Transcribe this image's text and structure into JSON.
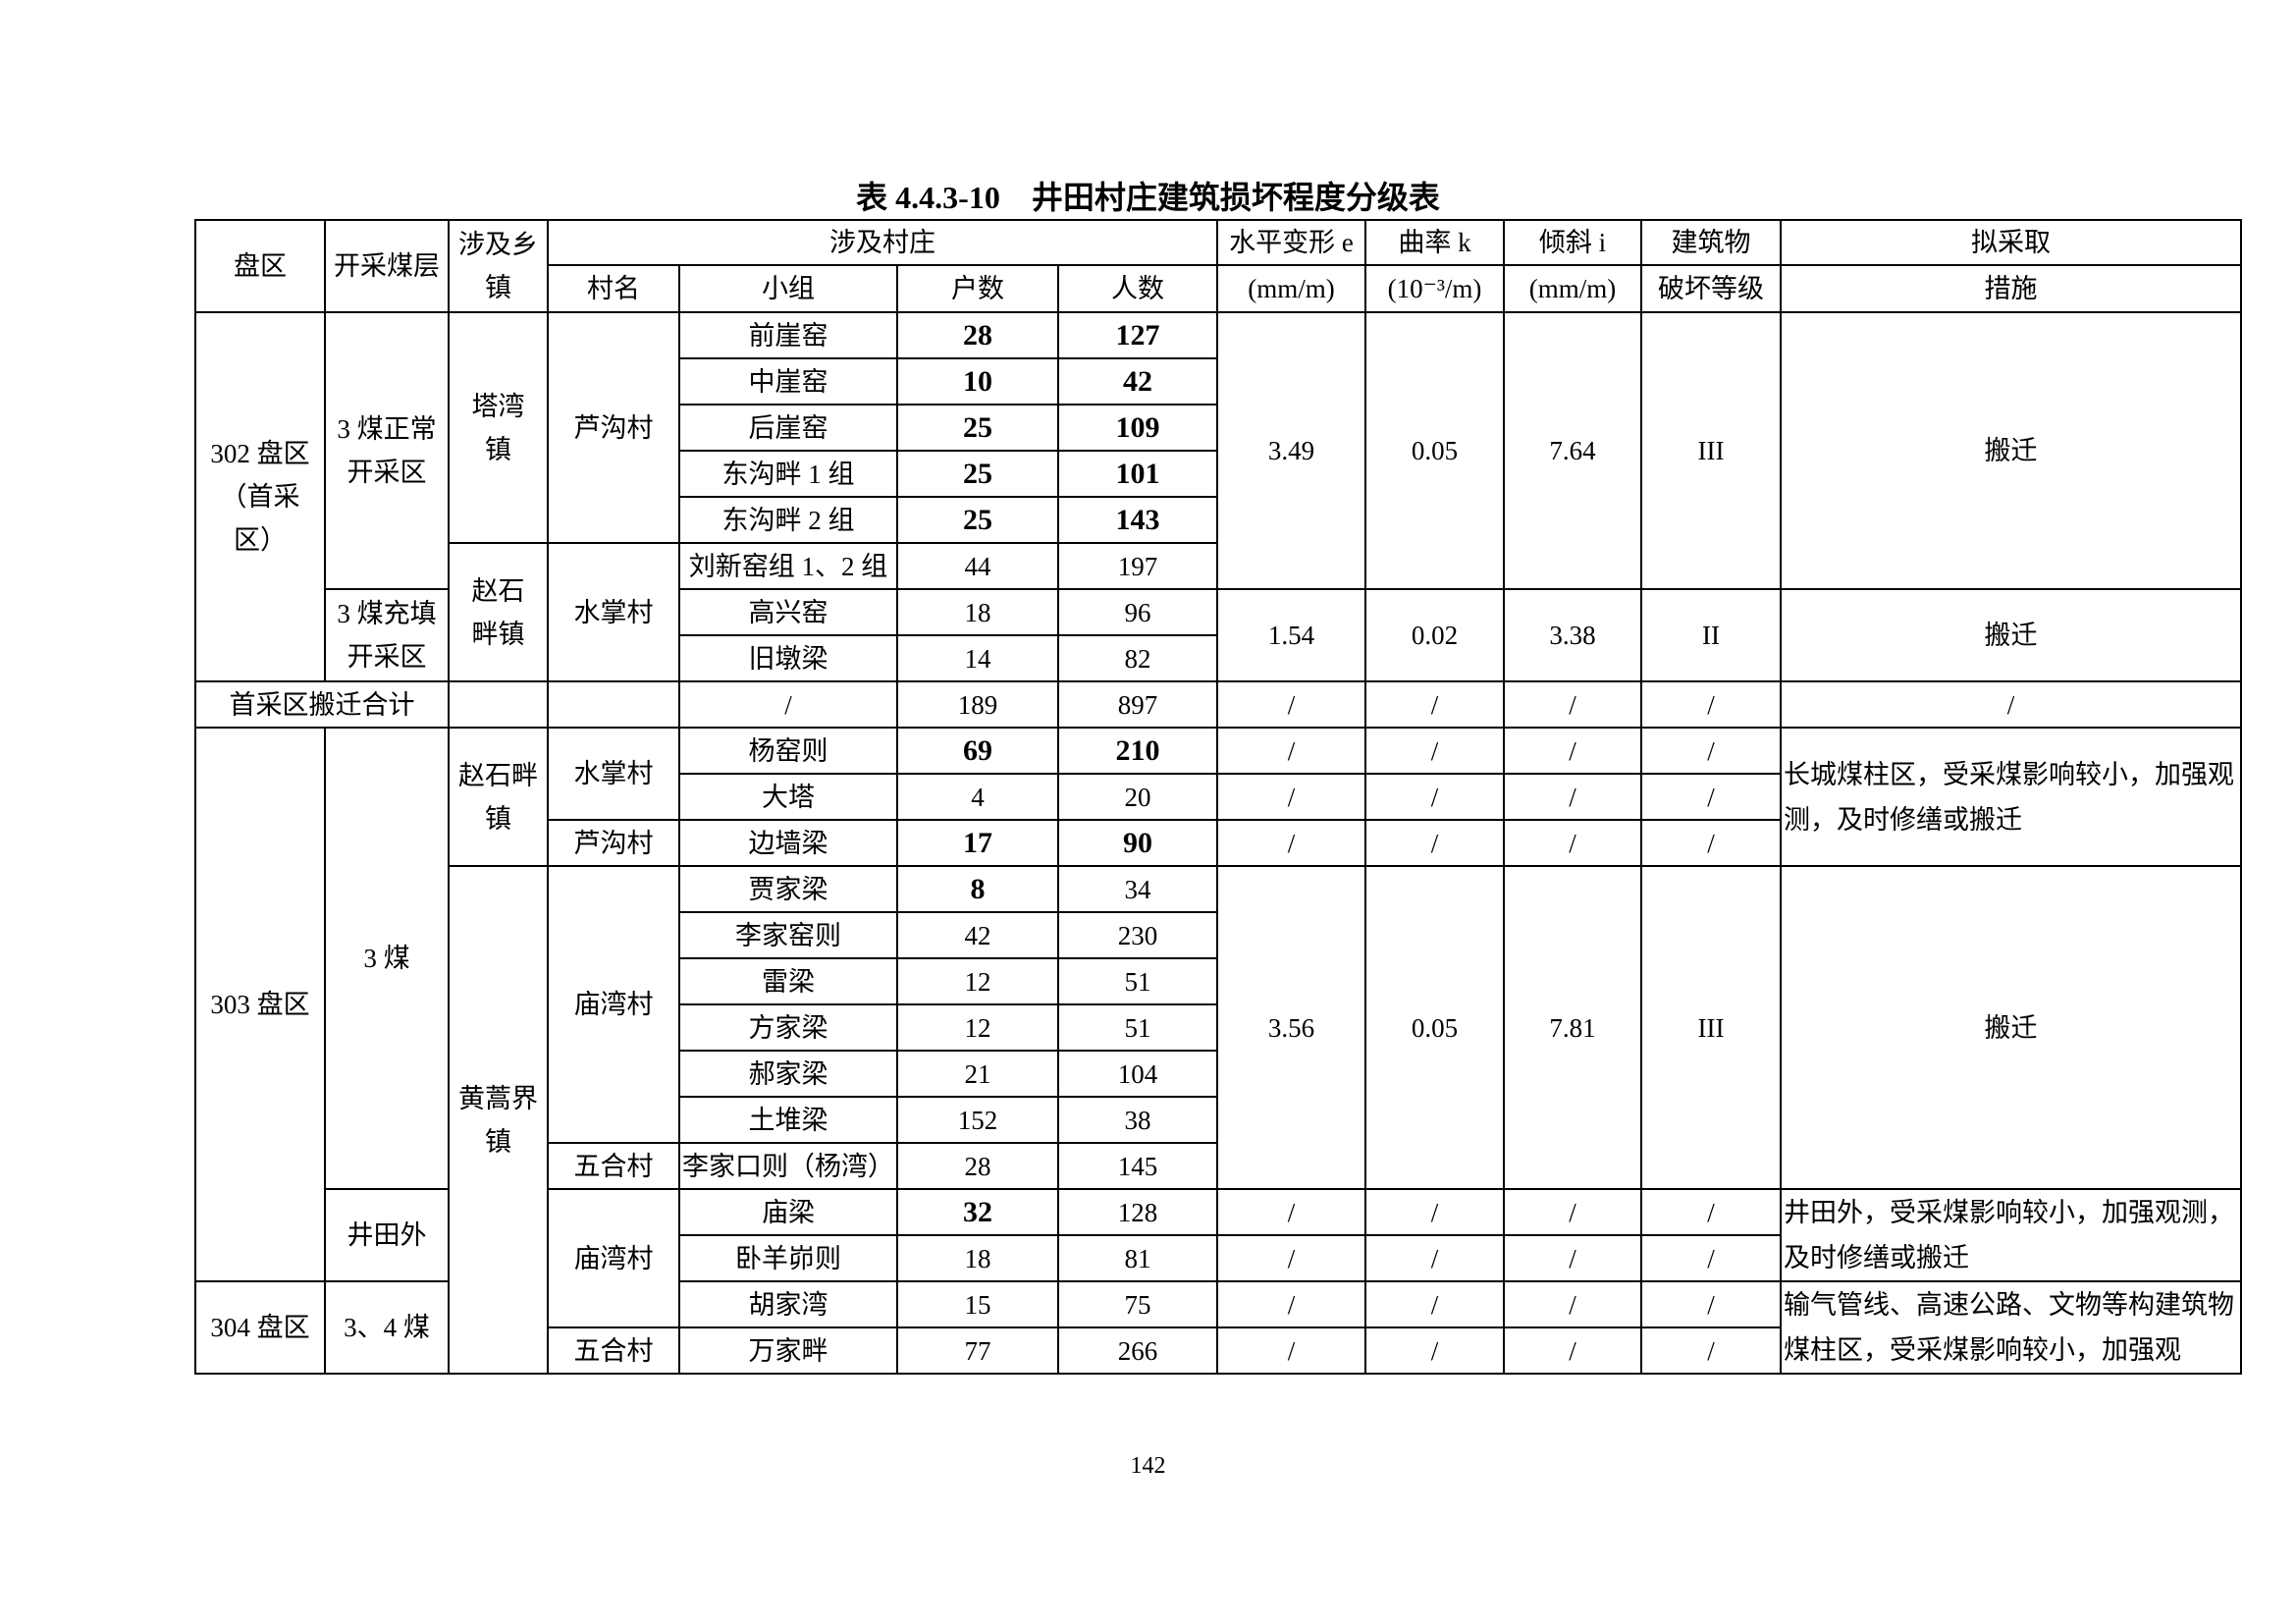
{
  "title": "表 4.4.3-10　井田村庄建筑损坏程度分级表",
  "page_number": "142",
  "header": [
    [
      {
        "t": "盘区",
        "rs": 2
      },
      {
        "t": "开采煤层",
        "rs": 2
      },
      {
        "t": "涉及乡\n镇",
        "rs": 2
      },
      {
        "t": "涉及村庄",
        "cs": 4
      },
      {
        "t": "水平变形 e"
      },
      {
        "t": "曲率 k"
      },
      {
        "t": "倾斜 i"
      },
      {
        "t": "建筑物"
      },
      {
        "t": "拟采取"
      }
    ],
    [
      {
        "t": "村名"
      },
      {
        "t": "小组"
      },
      {
        "t": "户数"
      },
      {
        "t": "人数"
      },
      {
        "t": "(mm/m)"
      },
      {
        "t": "(10⁻³/m)"
      },
      {
        "t": "(mm/m)"
      },
      {
        "t": "破坏等级"
      },
      {
        "t": "措施"
      }
    ]
  ],
  "rows": [
    [
      {
        "t": "302 盘区\n（首采\n区）",
        "rs": 8
      },
      {
        "t": "3 煤正常\n开采区",
        "rs": 6
      },
      {
        "t": "塔湾\n镇",
        "rs": 5
      },
      {
        "t": "芦沟村",
        "rs": 5
      },
      {
        "t": "前崖窑"
      },
      {
        "t": "28",
        "b": 1
      },
      {
        "t": "127",
        "b": 1
      },
      {
        "t": "3.49",
        "rs": 6
      },
      {
        "t": "0.05",
        "rs": 6
      },
      {
        "t": "7.64",
        "rs": 6
      },
      {
        "t": "III",
        "rs": 6
      },
      {
        "t": "搬迁",
        "rs": 6
      }
    ],
    [
      {
        "t": "中崖窑"
      },
      {
        "t": "10",
        "b": 1
      },
      {
        "t": "42",
        "b": 1
      }
    ],
    [
      {
        "t": "后崖窑"
      },
      {
        "t": "25",
        "b": 1
      },
      {
        "t": "109",
        "b": 1
      }
    ],
    [
      {
        "t": "东沟畔 1 组"
      },
      {
        "t": "25",
        "b": 1
      },
      {
        "t": "101",
        "b": 1
      }
    ],
    [
      {
        "t": "东沟畔 2 组"
      },
      {
        "t": "25",
        "b": 1
      },
      {
        "t": "143",
        "b": 1
      }
    ],
    [
      {
        "t": "赵石\n畔镇",
        "rs": 3
      },
      {
        "t": "水掌村",
        "rs": 3
      },
      {
        "t": "刘新窑组 1、2 组"
      },
      {
        "t": "44"
      },
      {
        "t": "197"
      }
    ],
    [
      {
        "t": "3 煤充填\n开采区",
        "rs": 2
      },
      {
        "t": "高兴窑"
      },
      {
        "t": "18"
      },
      {
        "t": "96"
      },
      {
        "t": "1.54",
        "rs": 2
      },
      {
        "t": "0.02",
        "rs": 2
      },
      {
        "t": "3.38",
        "rs": 2
      },
      {
        "t": "II",
        "rs": 2
      },
      {
        "t": "搬迁",
        "rs": 2
      }
    ],
    [
      {
        "t": "旧墩梁"
      },
      {
        "t": "14"
      },
      {
        "t": "82"
      }
    ],
    [
      {
        "t": "首采区搬迁合计",
        "cs": 2
      },
      {
        "t": ""
      },
      {
        "t": ""
      },
      {
        "t": "/"
      },
      {
        "t": "189"
      },
      {
        "t": "897"
      },
      {
        "t": "/"
      },
      {
        "t": "/"
      },
      {
        "t": "/"
      },
      {
        "t": "/"
      },
      {
        "t": "/"
      }
    ],
    [
      {
        "t": "303 盘区",
        "rs": 12
      },
      {
        "t": "3 煤",
        "rs": 10
      },
      {
        "t": "赵石畔\n镇",
        "rs": 3
      },
      {
        "t": "水掌村",
        "rs": 2
      },
      {
        "t": "杨窑则"
      },
      {
        "t": "69",
        "b": 1
      },
      {
        "t": "210",
        "b": 1
      },
      {
        "t": "/"
      },
      {
        "t": "/"
      },
      {
        "t": "/"
      },
      {
        "t": "/"
      },
      {
        "t": "长城煤柱区，受采煤影响较小，加强观测，及时修缮或搬迁",
        "rs": 3,
        "l": 1
      }
    ],
    [
      {
        "t": "大塔"
      },
      {
        "t": "4"
      },
      {
        "t": "20"
      },
      {
        "t": "/"
      },
      {
        "t": "/"
      },
      {
        "t": "/"
      },
      {
        "t": "/"
      }
    ],
    [
      {
        "t": "芦沟村"
      },
      {
        "t": "边墙梁"
      },
      {
        "t": "17",
        "b": 1
      },
      {
        "t": "90",
        "b": 1
      },
      {
        "t": "/"
      },
      {
        "t": "/"
      },
      {
        "t": "/"
      },
      {
        "t": "/"
      }
    ],
    [
      {
        "t": "黄蒿界\n镇",
        "rs": 11
      },
      {
        "t": "庙湾村",
        "rs": 6
      },
      {
        "t": "贾家梁"
      },
      {
        "t": "8",
        "b": 1
      },
      {
        "t": "34"
      },
      {
        "t": "3.56",
        "rs": 7
      },
      {
        "t": "0.05",
        "rs": 7
      },
      {
        "t": "7.81",
        "rs": 7
      },
      {
        "t": "III",
        "rs": 7
      },
      {
        "t": "搬迁",
        "rs": 7
      }
    ],
    [
      {
        "t": "李家窑则"
      },
      {
        "t": "42"
      },
      {
        "t": "230"
      }
    ],
    [
      {
        "t": "雷梁"
      },
      {
        "t": "12"
      },
      {
        "t": "51"
      }
    ],
    [
      {
        "t": "方家梁"
      },
      {
        "t": "12"
      },
      {
        "t": "51"
      }
    ],
    [
      {
        "t": "郝家梁"
      },
      {
        "t": "21"
      },
      {
        "t": "104"
      }
    ],
    [
      {
        "t": "土堆梁"
      },
      {
        "t": "152"
      },
      {
        "t": "38"
      }
    ],
    [
      {
        "t": "五合村"
      },
      {
        "t": "李家口则（杨湾）"
      },
      {
        "t": "28"
      },
      {
        "t": "145"
      }
    ],
    [
      {
        "t": "井田外",
        "rs": 2
      },
      {
        "t": "庙湾村",
        "rs": 3
      },
      {
        "t": "庙梁"
      },
      {
        "t": "32",
        "b": 1
      },
      {
        "t": "128"
      },
      {
        "t": "/"
      },
      {
        "t": "/"
      },
      {
        "t": "/"
      },
      {
        "t": "/"
      },
      {
        "t": "井田外，受采煤影响较小，加强观测，及时修缮或搬迁",
        "rs": 2,
        "l": 1
      }
    ],
    [
      {
        "t": "卧羊峁则"
      },
      {
        "t": "18"
      },
      {
        "t": "81"
      },
      {
        "t": "/"
      },
      {
        "t": "/"
      },
      {
        "t": "/"
      },
      {
        "t": "/"
      }
    ],
    [
      {
        "t": "304 盘区",
        "rs": 2
      },
      {
        "t": "3、4 煤",
        "rs": 2
      },
      {
        "t": "胡家湾"
      },
      {
        "t": "15"
      },
      {
        "t": "75"
      },
      {
        "t": "/"
      },
      {
        "t": "/"
      },
      {
        "t": "/"
      },
      {
        "t": "/"
      },
      {
        "t": "输气管线、高速公路、文物等构建筑物煤柱区，受采煤影响较小，加强观",
        "rs": 2,
        "l": 1
      }
    ],
    [
      {
        "t": "五合村"
      },
      {
        "t": "万家畔"
      },
      {
        "t": "77"
      },
      {
        "t": "266"
      },
      {
        "t": "/"
      },
      {
        "t": "/"
      },
      {
        "t": "/"
      },
      {
        "t": "/"
      }
    ]
  ]
}
